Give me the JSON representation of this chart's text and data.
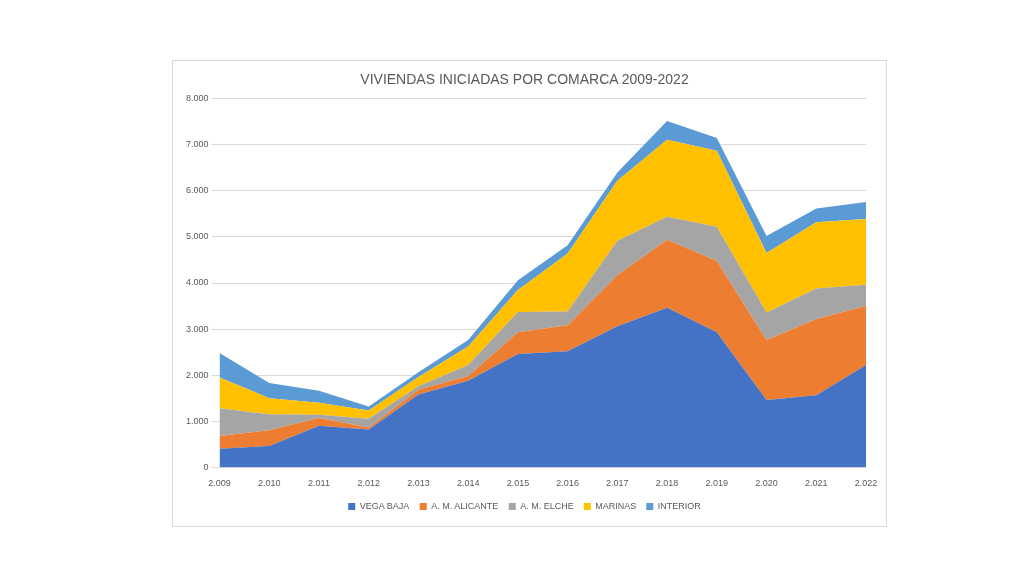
{
  "chart_data": {
    "type": "area",
    "title": "VIVIENDAS INICIADAS POR COMARCA 2009-2022",
    "stacked": true,
    "categories": [
      "2.009",
      "2.010",
      "2.011",
      "2.012",
      "2.013",
      "2.014",
      "2.015",
      "2.016",
      "2.017",
      "2.018",
      "2.019",
      "2.020",
      "2.021",
      "2.022"
    ],
    "series": [
      {
        "name": "VEGA BAJA",
        "color": "#4472c4",
        "values": [
          400,
          460,
          900,
          820,
          1580,
          1880,
          2460,
          2520,
          3060,
          3460,
          2930,
          1460,
          1560,
          2220
        ]
      },
      {
        "name": "A. M. ALICANTE",
        "color": "#ed7d31",
        "values": [
          280,
          340,
          170,
          40,
          100,
          100,
          470,
          560,
          1110,
          1480,
          1550,
          1300,
          1660,
          1280
        ]
      },
      {
        "name": "A. M. ELCHE",
        "color": "#a5a5a5",
        "values": [
          600,
          350,
          70,
          190,
          80,
          240,
          440,
          300,
          750,
          500,
          740,
          600,
          660,
          460
        ]
      },
      {
        "name": "MARINAS",
        "color": "#ffc000",
        "values": [
          670,
          350,
          260,
          180,
          200,
          400,
          480,
          1260,
          1300,
          1670,
          1650,
          1290,
          1440,
          1430
        ]
      },
      {
        "name": "INTERIOR",
        "color": "#5b9bd5",
        "values": [
          530,
          330,
          260,
          90,
          100,
          140,
          210,
          180,
          180,
          410,
          280,
          370,
          300,
          370
        ]
      }
    ],
    "ylim": [
      0,
      8000
    ],
    "yticks": [
      0,
      {
        "value": 1000,
        "label": "1.000"
      },
      {
        "value": 2000,
        "label": "2.000"
      },
      {
        "value": 3000,
        "label": "3.000"
      },
      {
        "value": 4000,
        "label": "4.000"
      },
      {
        "value": 5000,
        "label": "5.000"
      },
      {
        "value": 6000,
        "label": "6.000"
      },
      {
        "value": 7000,
        "label": "7.000"
      },
      {
        "value": 8000,
        "label": "8.000"
      }
    ],
    "grid": "y",
    "legend": "bottom"
  }
}
